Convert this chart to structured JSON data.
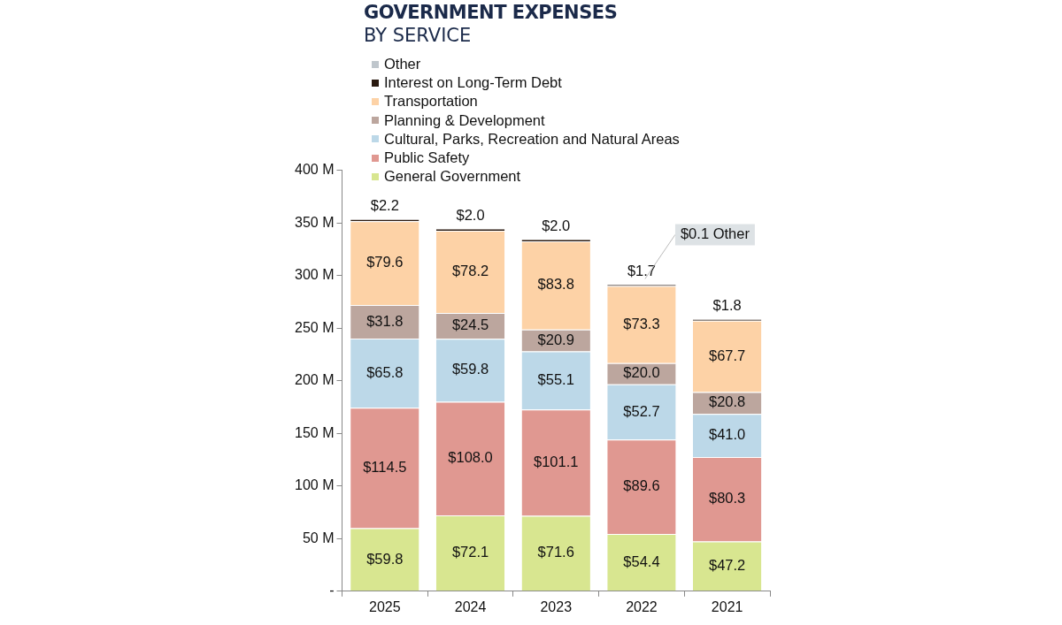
{
  "chart_data": {
    "type": "bar",
    "title": "GOVERNMENT EXPENSES",
    "subtitle": "BY SERVICE",
    "categories": [
      "2025",
      "2024",
      "2023",
      "2022",
      "2021"
    ],
    "stacked": true,
    "grid": false,
    "legend": "top left",
    "ylim": [
      0,
      400
    ],
    "yticks": [
      {
        "value": 0,
        "label": "-"
      },
      {
        "value": 50,
        "label": "50 M"
      },
      {
        "value": 100,
        "label": "100 M"
      },
      {
        "value": 150,
        "label": "150 M"
      },
      {
        "value": 200,
        "label": "200 M"
      },
      {
        "value": 250,
        "label": "250 M"
      },
      {
        "value": 300,
        "label": "300 M"
      },
      {
        "value": 350,
        "label": "350 M"
      },
      {
        "value": 400,
        "label": "400 M"
      }
    ],
    "series": [
      {
        "name": "General Government",
        "color": "#d8e690",
        "values": [
          59.8,
          72.1,
          71.6,
          54.4,
          47.2
        ],
        "value_labels": [
          "$59.8",
          "$72.1",
          "$71.6",
          "$54.4",
          "$47.2"
        ]
      },
      {
        "name": "Public Safety",
        "color": "#e09891",
        "values": [
          114.5,
          108.0,
          101.1,
          89.6,
          80.3
        ],
        "value_labels": [
          "$114.5",
          "$108.0",
          "$101.1",
          "$89.6",
          "$80.3"
        ]
      },
      {
        "name": "Cultural, Parks, Recreation and Natural Areas",
        "color": "#bcd8e8",
        "values": [
          65.8,
          59.8,
          55.1,
          52.7,
          41.0
        ],
        "value_labels": [
          "$65.8",
          "$59.8",
          "$55.1",
          "$52.7",
          "$41.0"
        ]
      },
      {
        "name": "Planning & Development",
        "color": "#bca69e",
        "values": [
          31.8,
          24.5,
          20.9,
          20.0,
          20.8
        ],
        "value_labels": [
          "$31.8",
          "$24.5",
          "$20.9",
          "$20.0",
          "$20.8"
        ]
      },
      {
        "name": "Transportation",
        "color": "#fdd2a6",
        "values": [
          79.6,
          78.2,
          83.8,
          73.3,
          67.7
        ],
        "value_labels": [
          "$79.6",
          "$78.2",
          "$83.8",
          "$73.3",
          "$67.7"
        ]
      },
      {
        "name": "Interest on Long-Term Debt",
        "color": "#2a1a10",
        "values": [
          2.2,
          2.0,
          2.0,
          1.7,
          1.8
        ],
        "value_labels": [
          "$2.2",
          "$2.0",
          "$2.0",
          "$1.7",
          "$1.8"
        ]
      },
      {
        "name": "Other",
        "color": "#bfc6cc",
        "values": [
          null,
          null,
          null,
          0.1,
          null
        ],
        "value_labels": [
          null,
          null,
          null,
          "$0.1 Other",
          null
        ]
      }
    ]
  }
}
